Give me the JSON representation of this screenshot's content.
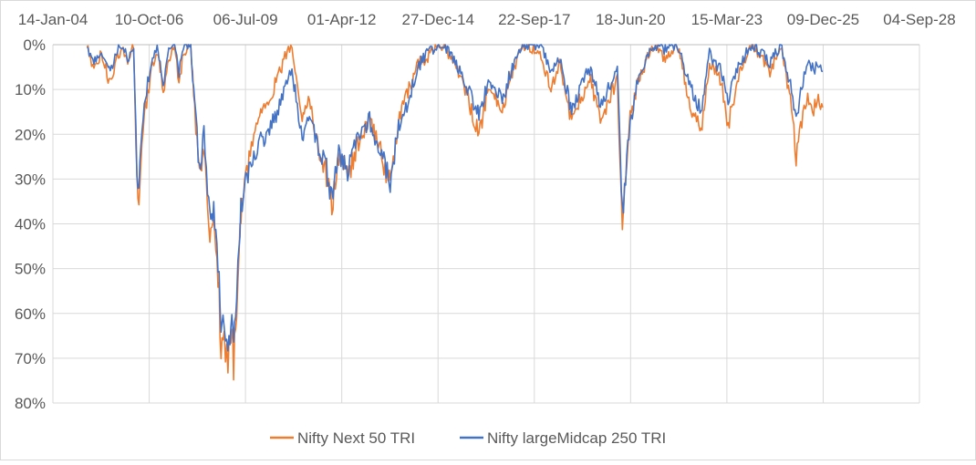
{
  "chart_data": {
    "type": "line",
    "title": "",
    "xlabel": "",
    "ylabel": "",
    "x_ticks": [
      "14-Jan-04",
      "10-Oct-06",
      "06-Jul-09",
      "01-Apr-12",
      "27-Dec-14",
      "22-Sep-17",
      "18-Jun-20",
      "15-Mar-23",
      "09-Dec-25",
      "04-Sep-28"
    ],
    "y_ticks": [
      "0%",
      "10%",
      "20%",
      "30%",
      "40%",
      "50%",
      "60%",
      "70%",
      "80%"
    ],
    "y_axis": {
      "min": 0,
      "max": 80,
      "reversed": true,
      "unit": "%"
    },
    "x_axis": {
      "min": "2004-01-14",
      "max": "2028-09-04"
    },
    "gridlines": "both",
    "legend_position": "bottom",
    "series": [
      {
        "name": "Nifty Next 50 TRI",
        "color": "#ED7D31",
        "points": [
          [
            "2005-01-01",
            0
          ],
          [
            "2005-03-15",
            6
          ],
          [
            "2005-06-01",
            2
          ],
          [
            "2005-09-01",
            9
          ],
          [
            "2005-11-01",
            3
          ],
          [
            "2006-01-01",
            1
          ],
          [
            "2006-03-01",
            4
          ],
          [
            "2006-05-01",
            0
          ],
          [
            "2006-05-25",
            22
          ],
          [
            "2006-06-15",
            37
          ],
          [
            "2006-07-15",
            25
          ],
          [
            "2006-09-01",
            14
          ],
          [
            "2006-11-01",
            6
          ],
          [
            "2007-01-01",
            2
          ],
          [
            "2007-03-05",
            10
          ],
          [
            "2007-05-01",
            4
          ],
          [
            "2007-07-01",
            0
          ],
          [
            "2007-08-15",
            8
          ],
          [
            "2007-10-01",
            2
          ],
          [
            "2007-12-15",
            0
          ],
          [
            "2008-01-25",
            15
          ],
          [
            "2008-03-15",
            30
          ],
          [
            "2008-05-01",
            22
          ],
          [
            "2008-07-01",
            44
          ],
          [
            "2008-08-10",
            38
          ],
          [
            "2008-10-05",
            55
          ],
          [
            "2008-10-25",
            70
          ],
          [
            "2008-11-15",
            64
          ],
          [
            "2008-12-10",
            68
          ],
          [
            "2009-01-05",
            71
          ],
          [
            "2009-02-15",
            64
          ],
          [
            "2009-03-05",
            72
          ],
          [
            "2009-04-05",
            58
          ],
          [
            "2009-05-01",
            45
          ],
          [
            "2009-05-20",
            38
          ],
          [
            "2009-06-15",
            32
          ],
          [
            "2009-08-01",
            27
          ],
          [
            "2009-10-01",
            20
          ],
          [
            "2009-12-01",
            15
          ],
          [
            "2010-03-01",
            12
          ],
          [
            "2010-06-01",
            8
          ],
          [
            "2010-09-01",
            2
          ],
          [
            "2010-11-01",
            0
          ],
          [
            "2010-12-15",
            7
          ],
          [
            "2011-02-15",
            16
          ],
          [
            "2011-05-01",
            12
          ],
          [
            "2011-08-15",
            25
          ],
          [
            "2011-10-15",
            28
          ],
          [
            "2011-12-20",
            36
          ],
          [
            "2012-03-01",
            25
          ],
          [
            "2012-06-01",
            30
          ],
          [
            "2012-09-01",
            23
          ],
          [
            "2013-01-15",
            16
          ],
          [
            "2013-04-15",
            22
          ],
          [
            "2013-06-25",
            28
          ],
          [
            "2013-08-28",
            30
          ],
          [
            "2013-11-01",
            18
          ],
          [
            "2014-03-01",
            10
          ],
          [
            "2014-06-01",
            4
          ],
          [
            "2014-09-01",
            3
          ],
          [
            "2015-01-01",
            0
          ],
          [
            "2015-04-15",
            2
          ],
          [
            "2015-09-01",
            8
          ],
          [
            "2016-02-25",
            20
          ],
          [
            "2016-06-01",
            10
          ],
          [
            "2016-11-15",
            14
          ],
          [
            "2017-01-01",
            8
          ],
          [
            "2017-06-01",
            0
          ],
          [
            "2017-12-01",
            2
          ],
          [
            "2018-03-15",
            10
          ],
          [
            "2018-06-15",
            4
          ],
          [
            "2018-10-15",
            18
          ],
          [
            "2019-01-15",
            12
          ],
          [
            "2019-05-01",
            8
          ],
          [
            "2019-08-20",
            18
          ],
          [
            "2019-12-15",
            10
          ],
          [
            "2020-02-01",
            8
          ],
          [
            "2020-03-24",
            40
          ],
          [
            "2020-06-01",
            18
          ],
          [
            "2020-09-01",
            8
          ],
          [
            "2021-01-01",
            2
          ],
          [
            "2021-03-01",
            0
          ],
          [
            "2021-06-01",
            3
          ],
          [
            "2021-10-15",
            0
          ],
          [
            "2022-03-07",
            14
          ],
          [
            "2022-06-20",
            20
          ],
          [
            "2022-09-15",
            4
          ],
          [
            "2023-01-15",
            8
          ],
          [
            "2023-03-28",
            18
          ],
          [
            "2023-07-01",
            8
          ],
          [
            "2023-12-01",
            0
          ],
          [
            "2024-06-04",
            6
          ],
          [
            "2024-09-25",
            0
          ],
          [
            "2025-01-15",
            14
          ],
          [
            "2025-03-03",
            26
          ],
          [
            "2025-05-01",
            17
          ],
          [
            "2025-07-01",
            11
          ],
          [
            "2025-09-01",
            14
          ],
          [
            "2025-11-01",
            12
          ],
          [
            "2025-12-05",
            14
          ]
        ]
      },
      {
        "name": "Nifty largeMidcap 250 TRI",
        "color": "#4472C4",
        "points": [
          [
            "2005-01-01",
            0
          ],
          [
            "2005-03-15",
            4
          ],
          [
            "2005-06-01",
            1
          ],
          [
            "2005-09-01",
            7
          ],
          [
            "2005-11-01",
            2
          ],
          [
            "2006-01-01",
            0
          ],
          [
            "2006-03-01",
            3
          ],
          [
            "2006-05-01",
            0
          ],
          [
            "2006-05-25",
            20
          ],
          [
            "2006-06-15",
            35
          ],
          [
            "2006-07-15",
            22
          ],
          [
            "2006-09-01",
            12
          ],
          [
            "2006-11-01",
            4
          ],
          [
            "2007-01-01",
            1
          ],
          [
            "2007-03-05",
            8
          ],
          [
            "2007-05-01",
            2
          ],
          [
            "2007-07-01",
            0
          ],
          [
            "2007-08-15",
            6
          ],
          [
            "2007-10-01",
            0
          ],
          [
            "2007-12-15",
            0
          ],
          [
            "2008-01-25",
            13
          ],
          [
            "2008-03-15",
            28
          ],
          [
            "2008-05-01",
            20
          ],
          [
            "2008-07-01",
            40
          ],
          [
            "2008-08-10",
            36
          ],
          [
            "2008-10-05",
            52
          ],
          [
            "2008-10-25",
            67
          ],
          [
            "2008-11-15",
            60
          ],
          [
            "2008-12-10",
            65
          ],
          [
            "2009-01-05",
            68
          ],
          [
            "2009-02-15",
            62
          ],
          [
            "2009-03-05",
            69
          ],
          [
            "2009-04-05",
            56
          ],
          [
            "2009-05-01",
            44
          ],
          [
            "2009-05-20",
            37
          ],
          [
            "2009-06-15",
            33
          ],
          [
            "2009-08-01",
            29
          ],
          [
            "2009-10-01",
            25
          ],
          [
            "2009-12-01",
            22
          ],
          [
            "2010-03-01",
            19
          ],
          [
            "2010-06-01",
            15
          ],
          [
            "2010-09-01",
            8
          ],
          [
            "2010-11-01",
            6
          ],
          [
            "2010-12-15",
            12
          ],
          [
            "2011-02-15",
            20
          ],
          [
            "2011-05-01",
            15
          ],
          [
            "2011-08-15",
            24
          ],
          [
            "2011-10-15",
            26
          ],
          [
            "2011-12-20",
            35
          ],
          [
            "2012-03-01",
            24
          ],
          [
            "2012-06-01",
            28
          ],
          [
            "2012-09-01",
            21
          ],
          [
            "2013-01-15",
            17
          ],
          [
            "2013-04-15",
            23
          ],
          [
            "2013-06-25",
            27
          ],
          [
            "2013-08-28",
            31
          ],
          [
            "2013-11-01",
            19
          ],
          [
            "2014-03-01",
            12
          ],
          [
            "2014-06-01",
            5
          ],
          [
            "2014-09-01",
            2
          ],
          [
            "2015-01-01",
            0
          ],
          [
            "2015-04-15",
            1
          ],
          [
            "2015-09-01",
            7
          ],
          [
            "2016-02-25",
            16
          ],
          [
            "2016-06-01",
            8
          ],
          [
            "2016-11-15",
            12
          ],
          [
            "2017-01-01",
            7
          ],
          [
            "2017-06-01",
            0
          ],
          [
            "2017-12-01",
            0
          ],
          [
            "2018-03-15",
            7
          ],
          [
            "2018-06-15",
            3
          ],
          [
            "2018-10-15",
            15
          ],
          [
            "2019-01-15",
            9
          ],
          [
            "2019-05-01",
            5
          ],
          [
            "2019-08-20",
            14
          ],
          [
            "2019-12-15",
            7
          ],
          [
            "2020-02-01",
            5
          ],
          [
            "2020-03-24",
            38
          ],
          [
            "2020-06-01",
            20
          ],
          [
            "2020-09-01",
            8
          ],
          [
            "2021-01-01",
            1
          ],
          [
            "2021-03-01",
            0
          ],
          [
            "2021-06-01",
            1
          ],
          [
            "2021-10-15",
            0
          ],
          [
            "2022-03-07",
            10
          ],
          [
            "2022-06-20",
            15
          ],
          [
            "2022-09-15",
            2
          ],
          [
            "2023-01-15",
            6
          ],
          [
            "2023-03-28",
            13
          ],
          [
            "2023-07-01",
            5
          ],
          [
            "2023-12-01",
            0
          ],
          [
            "2024-06-04",
            4
          ],
          [
            "2024-09-25",
            0
          ],
          [
            "2025-01-15",
            10
          ],
          [
            "2025-03-03",
            17
          ],
          [
            "2025-05-01",
            9
          ],
          [
            "2025-07-01",
            3
          ],
          [
            "2025-09-01",
            6
          ],
          [
            "2025-11-01",
            4
          ],
          [
            "2025-12-05",
            6
          ]
        ]
      }
    ]
  }
}
